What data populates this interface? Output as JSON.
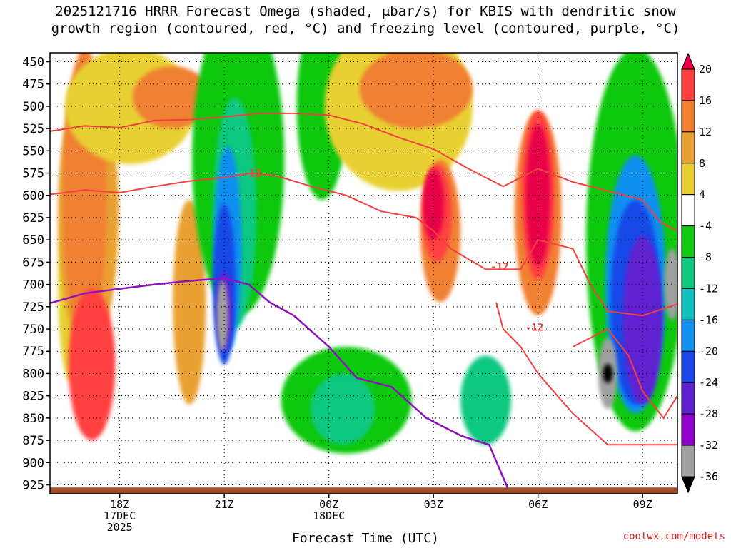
{
  "title": {
    "line1": "2025121716 HRRR Forecast Omega (shaded, μbar/s) for KBIS with dendritic snow",
    "line2": "growth region (contoured, red, °C) and freezing level (contoured, purple, °C)"
  },
  "credit": "coolwx.com/models",
  "chart_data": {
    "type": "heatmap",
    "xlabel": "Forecast Time (UTC)",
    "x_ticks": [
      {
        "hour": 18,
        "lines": [
          "18Z",
          "17DEC",
          "2025"
        ]
      },
      {
        "hour": 21,
        "lines": [
          "21Z"
        ]
      },
      {
        "hour": 24,
        "lines": [
          "00Z",
          "18DEC"
        ]
      },
      {
        "hour": 27,
        "lines": [
          "03Z"
        ]
      },
      {
        "hour": 30,
        "lines": [
          "06Z"
        ]
      },
      {
        "hour": 33,
        "lines": [
          "09Z"
        ]
      }
    ],
    "x_range_hours": [
      16,
      34
    ],
    "y_axis": "pressure (mb), inverted",
    "y_range": [
      935,
      440
    ],
    "y_ticks": [
      450,
      475,
      500,
      525,
      550,
      575,
      600,
      625,
      650,
      675,
      700,
      725,
      750,
      775,
      800,
      825,
      850,
      875,
      900,
      925
    ],
    "colorbar": {
      "unit": "μbar/s",
      "labels": [
        "20",
        "16",
        "12",
        "8",
        "4",
        "-4",
        "-8",
        "-12",
        "-16",
        "-20",
        "-24",
        "-28",
        "-32",
        "-36"
      ],
      "colors": [
        "#e8004a",
        "#ff4040",
        "#f08030",
        "#e8a030",
        "#e8d030",
        "#ffffff",
        "#10c810",
        "#10c880",
        "#10c0c0",
        "#1090f0",
        "#1848e8",
        "#6020d0",
        "#9000c8",
        "#a0a0a0",
        "#000000"
      ]
    },
    "omega_shading": [
      {
        "band": "+4..+8",
        "color": "#e8d030",
        "center": [
          16.6,
          700
        ],
        "extent": [
          0.5,
          210
        ]
      },
      {
        "band": "+8..+12",
        "color": "#e8a030",
        "center": [
          17.1,
          620
        ],
        "extent": [
          1.5,
          300
        ]
      },
      {
        "band": "+12..+16",
        "color": "#f08030",
        "center": [
          17.0,
          600
        ],
        "extent": [
          1.0,
          320
        ]
      },
      {
        "band": "+16..+20",
        "color": "#ff4040",
        "center": [
          17.2,
          790
        ],
        "extent": [
          1.1,
          160
        ]
      },
      {
        "band": "+4..+8",
        "color": "#e8d030",
        "center": [
          18.3,
          500
        ],
        "extent": [
          3.5,
          120
        ]
      },
      {
        "band": "+8..+12",
        "color": "#e8a030",
        "center": [
          20.0,
          720
        ],
        "extent": [
          0.7,
          220
        ]
      },
      {
        "band": "+12..+16",
        "color": "#f08030",
        "center": [
          19.5,
          490
        ],
        "extent": [
          2.0,
          60
        ]
      },
      {
        "band": "-4..-8",
        "color": "#10c810",
        "center": [
          21.4,
          560
        ],
        "extent": [
          2.4,
          340
        ]
      },
      {
        "band": "-8..-12",
        "color": "#10c880",
        "center": [
          21.3,
          620
        ],
        "extent": [
          1.0,
          250
        ]
      },
      {
        "band": "-16..-20",
        "color": "#1090f0",
        "center": [
          21.1,
          660
        ],
        "extent": [
          0.55,
          220
        ]
      },
      {
        "band": "-20..-24",
        "color": "#1848e8",
        "center": [
          21.0,
          700
        ],
        "extent": [
          0.4,
          170
        ]
      },
      {
        "band": "-24..-28",
        "color": "#6020d0",
        "center": [
          21.0,
          730
        ],
        "extent": [
          0.2,
          80
        ]
      },
      {
        "band": "-32..-36",
        "color": "#a0a0a0",
        "center": [
          20.95,
          735
        ],
        "extent": [
          0.08,
          70
        ]
      },
      {
        "band": "-4..-8",
        "color": "#10c810",
        "center": [
          24.5,
          830
        ],
        "extent": [
          3.5,
          110
        ]
      },
      {
        "band": "-8..-12",
        "color": "#10c880",
        "center": [
          24.4,
          840
        ],
        "extent": [
          1.6,
          70
        ]
      },
      {
        "band": "-4..-8",
        "color": "#10c810",
        "center": [
          23.8,
          500
        ],
        "extent": [
          1.2,
          200
        ]
      },
      {
        "band": "+4..+8",
        "color": "#e8d030",
        "center": [
          26.0,
          500
        ],
        "extent": [
          4.0,
          180
        ]
      },
      {
        "band": "+12..+16",
        "color": "#f08030",
        "center": [
          26.5,
          480
        ],
        "extent": [
          3.0,
          80
        ]
      },
      {
        "band": "+12..+16",
        "color": "#f08030",
        "center": [
          27.2,
          640
        ],
        "extent": [
          0.9,
          150
        ]
      },
      {
        "band": "+16..+20",
        "color": "#ff4040",
        "center": [
          27.1,
          620
        ],
        "extent": [
          0.6,
          100
        ]
      },
      {
        "band": "+20",
        "color": "#e8004a",
        "center": [
          27.0,
          610
        ],
        "extent": [
          0.35,
          70
        ]
      },
      {
        "band": "-8..-12",
        "color": "#10c880",
        "center": [
          28.5,
          830
        ],
        "extent": [
          1.2,
          90
        ]
      },
      {
        "band": "+12..+16",
        "color": "#f08030",
        "center": [
          30.0,
          620
        ],
        "extent": [
          1.1,
          220
        ]
      },
      {
        "band": "+16..+20",
        "color": "#ff4040",
        "center": [
          30.0,
          600
        ],
        "extent": [
          0.7,
          180
        ]
      },
      {
        "band": "+20",
        "color": "#e8004a",
        "center": [
          30.0,
          600
        ],
        "extent": [
          0.45,
          150
        ]
      },
      {
        "band": "-4..-8",
        "color": "#10c810",
        "center": [
          32.8,
          650
        ],
        "extent": [
          2.6,
          420
        ]
      },
      {
        "band": "-16..-20",
        "color": "#1090f0",
        "center": [
          32.8,
          700
        ],
        "extent": [
          1.5,
          280
        ]
      },
      {
        "band": "-20..-24",
        "color": "#1848e8",
        "center": [
          32.8,
          720
        ],
        "extent": [
          1.2,
          220
        ]
      },
      {
        "band": "-24..-28",
        "color": "#6020d0",
        "center": [
          33.0,
          740
        ],
        "extent": [
          0.9,
          180
        ]
      },
      {
        "band": "-32..-36",
        "color": "#a0a0a0",
        "center": [
          32.0,
          800
        ],
        "extent": [
          0.3,
          70
        ]
      },
      {
        "band": "<-36",
        "color": "#000000",
        "center": [
          32.0,
          800
        ],
        "extent": [
          0.04,
          12
        ]
      },
      {
        "band": "-32..-36",
        "color": "#a0a0a0",
        "center": [
          33.85,
          700
        ],
        "extent": [
          0.2,
          70
        ]
      }
    ],
    "dgz_contours": {
      "color": "#f04040",
      "label": "-12",
      "lines": [
        {
          "points": [
            [
              16,
              528
            ],
            [
              17,
              522
            ],
            [
              18,
              524
            ],
            [
              19,
              516
            ],
            [
              20,
              515
            ],
            [
              21,
              512
            ],
            [
              22,
              508
            ],
            [
              23,
              508
            ],
            [
              24,
              510
            ],
            [
              25,
              520
            ],
            [
              26,
              535
            ],
            [
              27,
              548
            ],
            [
              28,
              570
            ],
            [
              29,
              590
            ],
            [
              30,
              570
            ],
            [
              31,
              585
            ],
            [
              32,
              595
            ],
            [
              33,
              605
            ],
            [
              33.5,
              630
            ],
            [
              34,
              640
            ]
          ]
        },
        {
          "points": [
            [
              16,
              599
            ],
            [
              17,
              594
            ],
            [
              18,
              597
            ],
            [
              19,
              590
            ],
            [
              20,
              584
            ],
            [
              21,
              580
            ],
            [
              21.8,
              575
            ],
            [
              22.5,
              578
            ],
            [
              23.5,
              590
            ],
            [
              24.5,
              600
            ],
            [
              25.5,
              618
            ],
            [
              26.5,
              625
            ],
            [
              27,
              640
            ],
            [
              27.5,
              660
            ],
            [
              28.5,
              683
            ],
            [
              29.5,
              683
            ],
            [
              30,
              650
            ],
            [
              30.5,
              655
            ],
            [
              31,
              660
            ],
            [
              31.5,
              700
            ],
            [
              32,
              730
            ],
            [
              33,
              735
            ],
            [
              34,
              722
            ]
          ]
        },
        {
          "points": [
            [
              28.8,
              720
            ],
            [
              29,
              750
            ],
            [
              29.5,
              770
            ],
            [
              30,
              800
            ],
            [
              31,
              845
            ],
            [
              32,
              880
            ],
            [
              33,
              880
            ],
            [
              34,
              880
            ]
          ]
        },
        {
          "points": [
            [
              31,
              770
            ],
            [
              31.5,
              760
            ],
            [
              32,
              750
            ],
            [
              32.6,
              780
            ],
            [
              33,
              820
            ],
            [
              33.6,
              850
            ],
            [
              34,
              825
            ]
          ]
        }
      ],
      "label_positions": [
        [
          21.8,
          575
        ],
        [
          28.9,
          680
        ],
        [
          29.9,
          748
        ]
      ]
    },
    "freezing_level": {
      "color": "#9010c0",
      "points": [
        [
          16,
          721
        ],
        [
          17,
          710
        ],
        [
          18,
          705
        ],
        [
          19,
          700
        ],
        [
          20,
          696
        ],
        [
          21,
          693
        ],
        [
          21.7,
          700
        ],
        [
          22.3,
          720
        ],
        [
          23,
          735
        ],
        [
          24,
          770
        ],
        [
          24.8,
          805
        ],
        [
          25.8,
          815
        ],
        [
          26.8,
          850
        ],
        [
          27.8,
          870
        ],
        [
          28.6,
          880
        ],
        [
          29.2,
          935
        ]
      ]
    },
    "terrain": {
      "color": "#a0502a",
      "top_mb": 928
    }
  }
}
